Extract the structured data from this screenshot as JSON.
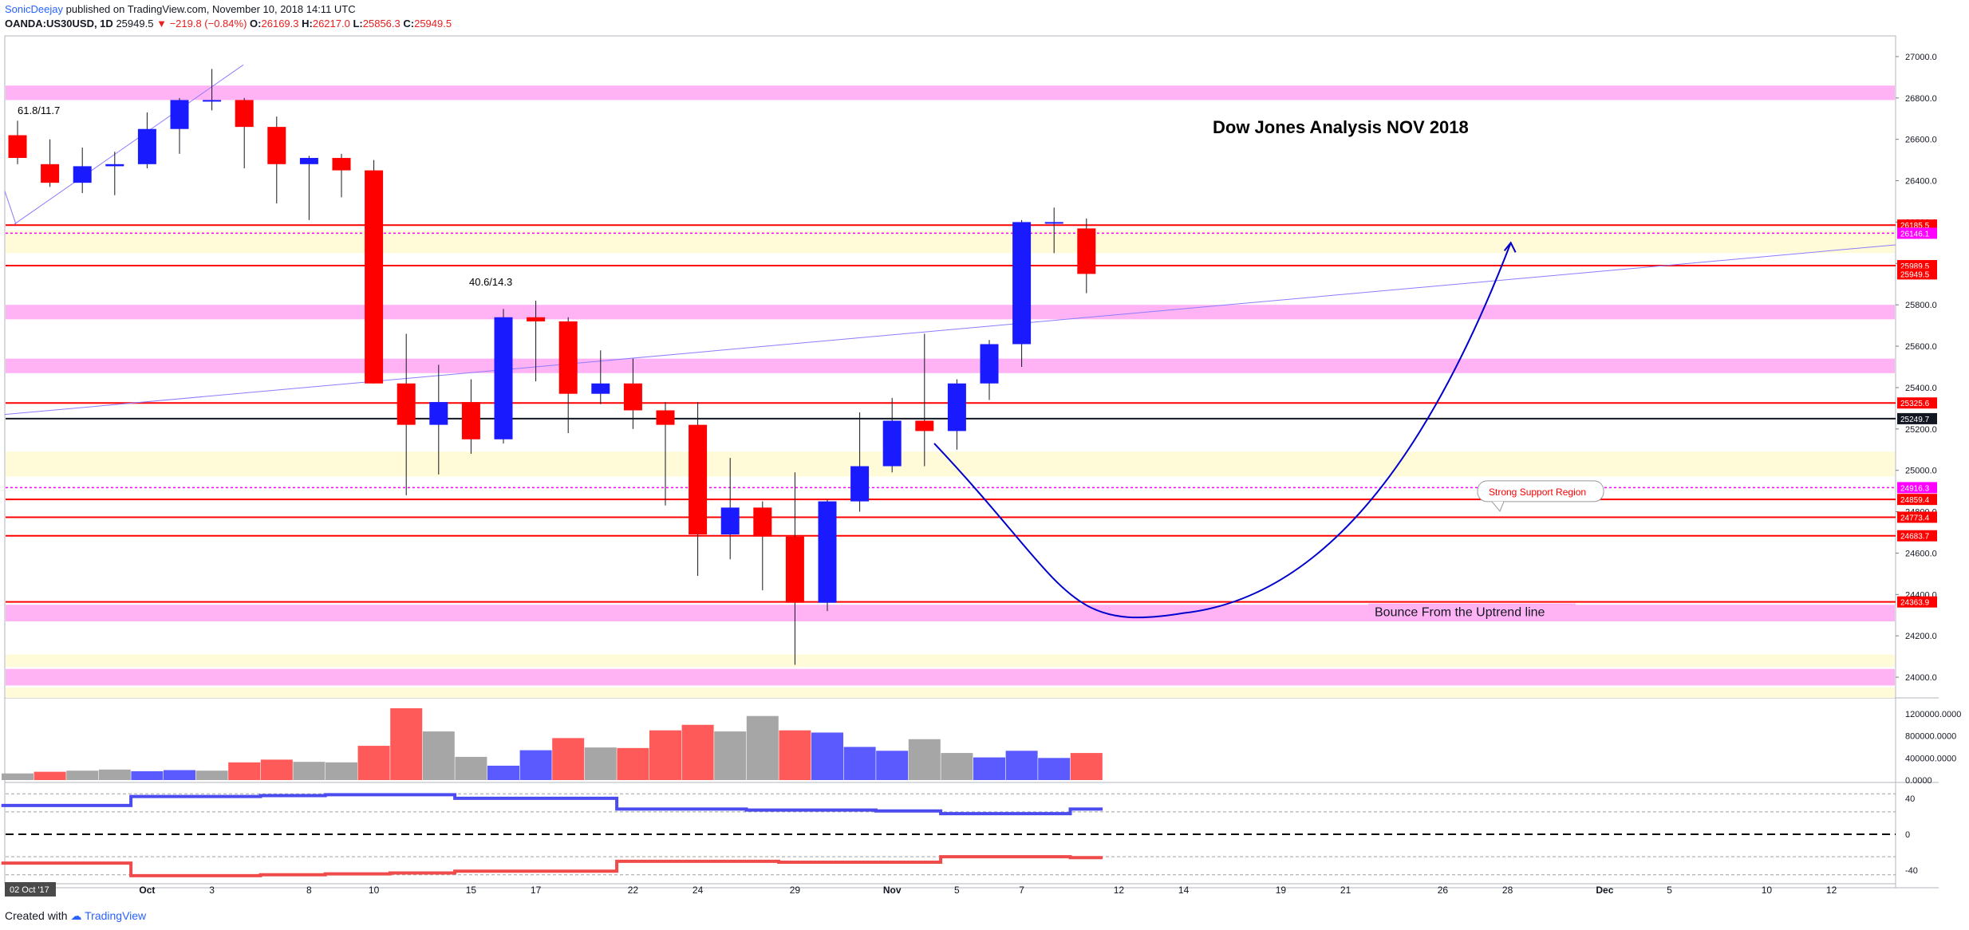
{
  "header": {
    "author": "SonicDeejay",
    "published_text": "published on TradingView.com, November 10, 2018 14:11 UTC"
  },
  "ohlc_bar": {
    "symbol": "OANDA:US30USD, 1D",
    "last": "25949.5",
    "change": "−219.8 (−0.84%)",
    "open_label": "O:",
    "open": "26169.3",
    "high_label": "H:",
    "high": "26217.0",
    "low_label": "L:",
    "low": "25856.3",
    "close_label": "C:",
    "close": "25949.5"
  },
  "footer": {
    "created_with": "Created with",
    "brand": "TradingView"
  },
  "colors": {
    "up": "#1a1aff",
    "down": "#ff0000",
    "zone_pink": "#ffb3f5",
    "zone_yellow": "#fffbd9",
    "level_red": "#ff0000",
    "level_magenta": "#ff00ff",
    "curve_blue": "#0000cc"
  },
  "chart_data": [
    {
      "type": "candlestick",
      "title": "Dow Jones Analysis NOV 2018",
      "ylim": [
        23900,
        27100
      ],
      "price_ticks": [
        24000,
        24200,
        24400,
        24600,
        24800,
        25000,
        25200,
        25400,
        25600,
        25800,
        26000,
        26200,
        26400,
        26600,
        26800,
        27000
      ],
      "x_ticks": [
        {
          "i": 4,
          "label": "Oct"
        },
        {
          "i": 6,
          "label": "3"
        },
        {
          "i": 9,
          "label": "8"
        },
        {
          "i": 11,
          "label": "10"
        },
        {
          "i": 14,
          "label": "15"
        },
        {
          "i": 16,
          "label": "17"
        },
        {
          "i": 19,
          "label": "22"
        },
        {
          "i": 21,
          "label": "24"
        },
        {
          "i": 24,
          "label": "29"
        },
        {
          "i": 27,
          "label": "Nov"
        },
        {
          "i": 29,
          "label": "5"
        },
        {
          "i": 31,
          "label": "7"
        },
        {
          "i": 34,
          "label": "12"
        },
        {
          "i": 36,
          "label": "14"
        },
        {
          "i": 39,
          "label": "19"
        },
        {
          "i": 41,
          "label": "21"
        },
        {
          "i": 44,
          "label": "26"
        },
        {
          "i": 46,
          "label": "28"
        },
        {
          "i": 49,
          "label": "Dec"
        },
        {
          "i": 51,
          "label": "5"
        },
        {
          "i": 54,
          "label": "10"
        },
        {
          "i": 56,
          "label": "12"
        }
      ],
      "date_badge": "02 Oct '17",
      "candles": [
        {
          "o": 26620,
          "h": 26690,
          "l": 26480,
          "c": 26510
        },
        {
          "o": 26480,
          "h": 26600,
          "l": 26370,
          "c": 26390
        },
        {
          "o": 26390,
          "h": 26560,
          "l": 26340,
          "c": 26470
        },
        {
          "o": 26470,
          "h": 26540,
          "l": 26330,
          "c": 26480
        },
        {
          "o": 26480,
          "h": 26730,
          "l": 26460,
          "c": 26650
        },
        {
          "o": 26650,
          "h": 26800,
          "l": 26530,
          "c": 26790
        },
        {
          "o": 26790,
          "h": 26940,
          "l": 26740,
          "c": 26790
        },
        {
          "o": 26790,
          "h": 26800,
          "l": 26460,
          "c": 26660
        },
        {
          "o": 26660,
          "h": 26710,
          "l": 26290,
          "c": 26480
        },
        {
          "o": 26480,
          "h": 26520,
          "l": 26210,
          "c": 26510
        },
        {
          "o": 26510,
          "h": 26530,
          "l": 26320,
          "c": 26450
        },
        {
          "o": 26450,
          "h": 26500,
          "l": 25420,
          "c": 25420
        },
        {
          "o": 25420,
          "h": 25660,
          "l": 24880,
          "c": 25220
        },
        {
          "o": 25220,
          "h": 25510,
          "l": 24980,
          "c": 25330
        },
        {
          "o": 25330,
          "h": 25440,
          "l": 25080,
          "c": 25150
        },
        {
          "o": 25150,
          "h": 25780,
          "l": 25130,
          "c": 25740
        },
        {
          "o": 25740,
          "h": 25820,
          "l": 25430,
          "c": 25720
        },
        {
          "o": 25720,
          "h": 25740,
          "l": 25180,
          "c": 25370
        },
        {
          "o": 25370,
          "h": 25580,
          "l": 25320,
          "c": 25420
        },
        {
          "o": 25420,
          "h": 25540,
          "l": 25200,
          "c": 25290
        },
        {
          "o": 25290,
          "h": 25330,
          "l": 24830,
          "c": 25220
        },
        {
          "o": 25220,
          "h": 25330,
          "l": 24490,
          "c": 24690
        },
        {
          "o": 24690,
          "h": 25060,
          "l": 24570,
          "c": 24820
        },
        {
          "o": 24820,
          "h": 24850,
          "l": 24420,
          "c": 24680
        },
        {
          "o": 24680,
          "h": 24990,
          "l": 24060,
          "c": 24360
        },
        {
          "o": 24360,
          "h": 24860,
          "l": 24320,
          "c": 24850
        },
        {
          "o": 24850,
          "h": 25280,
          "l": 24800,
          "c": 25020
        },
        {
          "o": 25020,
          "h": 25350,
          "l": 24990,
          "c": 25240
        },
        {
          "o": 25240,
          "h": 25660,
          "l": 25020,
          "c": 25190
        },
        {
          "o": 25190,
          "h": 25440,
          "l": 25100,
          "c": 25420
        },
        {
          "o": 25420,
          "h": 25630,
          "l": 25340,
          "c": 25610
        },
        {
          "o": 25610,
          "h": 26210,
          "l": 25500,
          "c": 26200
        },
        {
          "o": 26200,
          "h": 26270,
          "l": 26050,
          "c": 26200
        },
        {
          "o": 26169.3,
          "h": 26217.0,
          "l": 25856.3,
          "c": 25949.5
        }
      ],
      "levels": [
        {
          "price": 26185.5,
          "label": "26185.5",
          "color": "#ff0000",
          "style": "solid"
        },
        {
          "price": 26146.1,
          "label": "26146.1",
          "color": "#ff00ff",
          "style": "dotted"
        },
        {
          "price": 25989.5,
          "label": "25989.5",
          "color": "#ff0000",
          "style": "solid"
        },
        {
          "price": 25949.5,
          "label": "25949.5",
          "color": "#ff0000",
          "style": "none"
        },
        {
          "price": 25325.6,
          "label": "25325.6",
          "color": "#ff0000",
          "style": "solid"
        },
        {
          "price": 25249.7,
          "label": "25249.7",
          "color": "#131722",
          "style": "solid"
        },
        {
          "price": 24916.3,
          "label": "24916.3",
          "color": "#ff00ff",
          "style": "dotted"
        },
        {
          "price": 24859.4,
          "label": "24859.4",
          "color": "#ff0000",
          "style": "solid"
        },
        {
          "price": 24773.4,
          "label": "24773.4",
          "color": "#ff0000",
          "style": "solid"
        },
        {
          "price": 24683.7,
          "label": "24683.7",
          "color": "#ff0000",
          "style": "solid"
        },
        {
          "price": 24363.9,
          "label": "24363.9",
          "color": "#ff0000",
          "style": "solid"
        }
      ],
      "zones": [
        {
          "from": 26790,
          "to": 26860,
          "color": "pink"
        },
        {
          "from": 26050,
          "to": 26160,
          "color": "yellow"
        },
        {
          "from": 25730,
          "to": 25800,
          "color": "pink"
        },
        {
          "from": 25470,
          "to": 25540,
          "color": "pink"
        },
        {
          "from": 24970,
          "to": 25090,
          "color": "yellow"
        },
        {
          "from": 24270,
          "to": 24350,
          "color": "pink"
        },
        {
          "from": 24050,
          "to": 24110,
          "color": "yellow"
        },
        {
          "from": 23960,
          "to": 24040,
          "color": "pink"
        },
        {
          "from": 23900,
          "to": 23950,
          "color": "yellow"
        }
      ],
      "annotations": {
        "fib_1": "61.8/11.7",
        "fib_2": "40.6/14.3",
        "support_callout": "Strong Support Region",
        "bounce_label": "Bounce From the Uptrend line"
      }
    },
    {
      "type": "bar",
      "title": "",
      "ylim": [
        0,
        1300000
      ],
      "ticks": [
        "1200000.0000",
        "800000.0000",
        "400000.0000",
        "0.0000"
      ],
      "tick_values": [
        1200000,
        800000,
        400000,
        0
      ],
      "values": [
        120000,
        150000,
        170000,
        190000,
        160000,
        180000,
        170000,
        320000,
        370000,
        330000,
        320000,
        620000,
        1300000,
        880000,
        420000,
        260000,
        540000,
        760000,
        590000,
        580000,
        900000,
        1000000,
        880000,
        1160000,
        900000,
        860000,
        600000,
        530000,
        740000,
        490000,
        410000,
        530000,
        400000,
        490000
      ],
      "colors": [
        "gray",
        "red",
        "gray",
        "gray",
        "blue",
        "blue",
        "gray",
        "red",
        "red",
        "gray",
        "gray",
        "red",
        "red",
        "gray",
        "gray",
        "blue",
        "blue",
        "red",
        "gray",
        "red",
        "red",
        "red",
        "gray",
        "gray",
        "red",
        "blue",
        "blue",
        "blue",
        "gray",
        "gray",
        "blue",
        "blue",
        "blue",
        "red"
      ]
    },
    {
      "type": "line",
      "title": "",
      "ylim": [
        -55,
        55
      ],
      "ticks": [
        "40",
        "0",
        "-40"
      ],
      "tick_values": [
        40,
        0,
        -40
      ],
      "series": [
        {
          "values": [
            32,
            32,
            32,
            32,
            42,
            42,
            42,
            42,
            43,
            43,
            44,
            44,
            44,
            44,
            40,
            40,
            40,
            40,
            40,
            28,
            28,
            28,
            28,
            27,
            27,
            27,
            27,
            26,
            26,
            23,
            23,
            23,
            23,
            28
          ]
        },
        {
          "values": [
            -32,
            -32,
            -32,
            -32,
            -46,
            -46,
            -46,
            -46,
            -45,
            -45,
            -44,
            -44,
            -43,
            -43,
            -41,
            -41,
            -41,
            -41,
            -41,
            -30,
            -30,
            -30,
            -30,
            -30,
            -31,
            -31,
            -31,
            -31,
            -31,
            -25,
            -25,
            -25,
            -25,
            -26
          ]
        }
      ]
    }
  ]
}
